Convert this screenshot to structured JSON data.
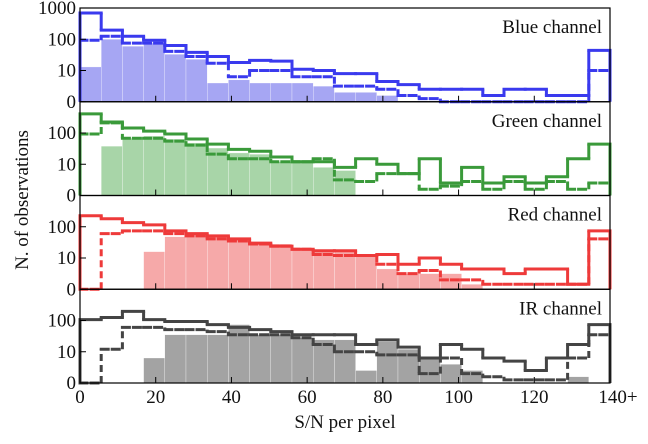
{
  "xlabel": "S/N per pixel",
  "ylabel": "N. of observations",
  "chart_data": [
    {
      "type": "histogram",
      "annotation": "Blue channel",
      "yscale": "symlog",
      "bins": [
        0,
        5.6,
        11.2,
        16.8,
        22.4,
        28,
        33.6,
        39.2,
        44.8,
        50.4,
        56,
        61.6,
        67.2,
        72.8,
        78.4,
        84,
        89.6,
        95.2,
        100.8,
        106.4,
        112,
        117.6,
        123.2,
        128.8,
        134.4,
        140
      ],
      "xlim": [
        0,
        140
      ],
      "ylim": [
        0,
        1000
      ],
      "yticks": [
        0,
        10,
        100,
        1000
      ],
      "series": [
        {
          "style": "solid",
          "color": "#3a3aee",
          "values": [
            690,
            195,
            125,
            93,
            63,
            38,
            28,
            18,
            21,
            20,
            11,
            10,
            9,
            9,
            6.5,
            5.5,
            4,
            4,
            4,
            2,
            4,
            4,
            2,
            2,
            44
          ]
        },
        {
          "style": "dashed",
          "color": "#3a3aee",
          "values": [
            93,
            125,
            75,
            75,
            41,
            28,
            17,
            8,
            10,
            10,
            8,
            8,
            5,
            5,
            4,
            2,
            1,
            0,
            0,
            0,
            0,
            0,
            0,
            0,
            10
          ]
        },
        {
          "style": "filled",
          "color": "#9c9cf2",
          "values": [
            13,
            100,
            60,
            75,
            33,
            23,
            6,
            7,
            6,
            6,
            6,
            5,
            3,
            3,
            2,
            0,
            0,
            0,
            0,
            0,
            0,
            0,
            0,
            0,
            0
          ]
        }
      ]
    },
    {
      "type": "histogram",
      "annotation": "Green channel",
      "yscale": "symlog",
      "bins": [
        0,
        5.6,
        11.2,
        16.8,
        22.4,
        28,
        33.6,
        39.2,
        44.8,
        50.4,
        56,
        61.6,
        67.2,
        72.8,
        78.4,
        84,
        89.6,
        95.2,
        100.8,
        106.4,
        112,
        117.6,
        123.2,
        128.8,
        134.4,
        140
      ],
      "xlim": [
        0,
        140
      ],
      "ylim": [
        0,
        1000
      ],
      "yticks": [
        0,
        10,
        100
      ],
      "series": [
        {
          "style": "solid",
          "color": "#3a9a3a",
          "values": [
            410,
            225,
            145,
            115,
            93,
            64,
            44,
            30,
            26,
            17,
            12,
            12,
            9,
            15,
            10,
            7,
            15,
            4,
            9,
            4,
            6,
            4,
            6,
            15,
            44
          ]
        },
        {
          "style": "dashed",
          "color": "#3a9a3a",
          "values": [
            93,
            210,
            68,
            68,
            55,
            41,
            21,
            15,
            15,
            12,
            12,
            15,
            5,
            4.5,
            7,
            7,
            2,
            3,
            4.5,
            2,
            4.5,
            2,
            4.5,
            2,
            4
          ]
        },
        {
          "style": "filled",
          "color": "#9fd09f",
          "values": [
            0,
            38,
            68,
            80,
            64,
            48,
            33,
            23,
            21,
            12,
            12,
            9,
            8,
            0,
            0,
            0,
            0,
            0,
            0,
            0,
            0,
            0,
            0,
            0,
            0
          ]
        }
      ]
    },
    {
      "type": "histogram",
      "annotation": "Red channel",
      "yscale": "symlog",
      "bins": [
        0,
        5.6,
        11.2,
        16.8,
        22.4,
        28,
        33.6,
        39.2,
        44.8,
        50.4,
        56,
        61.6,
        67.2,
        72.8,
        78.4,
        84,
        89.6,
        95.2,
        100.8,
        106.4,
        112,
        117.6,
        123.2,
        128.8,
        134.4,
        140
      ],
      "xlim": [
        0,
        140
      ],
      "ylim": [
        0,
        1000
      ],
      "yticks": [
        0,
        10,
        100
      ],
      "series": [
        {
          "style": "solid",
          "color": "#ee3a3a",
          "values": [
            225,
            180,
            135,
            115,
            74,
            60,
            51,
            41,
            30,
            24,
            19,
            17,
            17,
            12,
            13,
            8,
            10,
            8,
            6.5,
            6.5,
            5,
            6.5,
            6.5,
            1.6,
            74
          ]
        },
        {
          "style": "dashed",
          "color": "#ee3a3a",
          "values": [
            0,
            60,
            74,
            74,
            60,
            51,
            41,
            35,
            28,
            24,
            19,
            13,
            12,
            12,
            8,
            5,
            6,
            3,
            3,
            1.6,
            1.6,
            1.6,
            1.6,
            1.6,
            41
          ]
        },
        {
          "style": "filled",
          "color": "#f5a0a0",
          "values": [
            0,
            0,
            0,
            16,
            48,
            55,
            55,
            41,
            33,
            28,
            19,
            17,
            17,
            12,
            6.5,
            5,
            5,
            5,
            1.6,
            0,
            0,
            0,
            0,
            0,
            0
          ]
        }
      ]
    },
    {
      "type": "histogram",
      "annotation": "IR channel",
      "yscale": "symlog",
      "bins": [
        0,
        5.6,
        11.2,
        16.8,
        22.4,
        28,
        33.6,
        39.2,
        44.8,
        50.4,
        56,
        61.6,
        67.2,
        72.8,
        78.4,
        84,
        89.6,
        95.2,
        100.8,
        106.4,
        112,
        117.6,
        123.2,
        128.8,
        134.4,
        140
      ],
      "xlim": [
        0,
        140
      ],
      "ylim": [
        0,
        1000
      ],
      "yticks": [
        0,
        10,
        100
      ],
      "xticks": [
        0,
        20,
        40,
        60,
        80,
        100,
        120,
        {
          "value": 140,
          "label": "140+"
        }
      ],
      "series": [
        {
          "style": "solid",
          "color": "#444444",
          "values": [
            107,
            125,
            195,
            107,
            93,
            93,
            74,
            60,
            51,
            44,
            35,
            35,
            35,
            17,
            24,
            14,
            8,
            17,
            12,
            8,
            7,
            4,
            8,
            17,
            74
          ]
        },
        {
          "style": "dashed",
          "color": "#444444",
          "values": [
            0,
            12,
            60,
            60,
            51,
            51,
            44,
            35,
            35,
            35,
            28,
            17,
            10,
            10,
            9,
            9,
            3,
            8,
            3,
            2,
            1,
            1,
            1,
            8,
            35
          ]
        },
        {
          "style": "filled",
          "color": "#999999",
          "values": [
            0,
            0,
            0,
            8,
            35,
            35,
            35,
            74,
            35,
            35,
            28,
            24,
            24,
            4,
            21,
            12,
            8,
            6,
            4,
            0,
            0,
            0,
            0,
            2,
            0
          ]
        }
      ]
    }
  ]
}
